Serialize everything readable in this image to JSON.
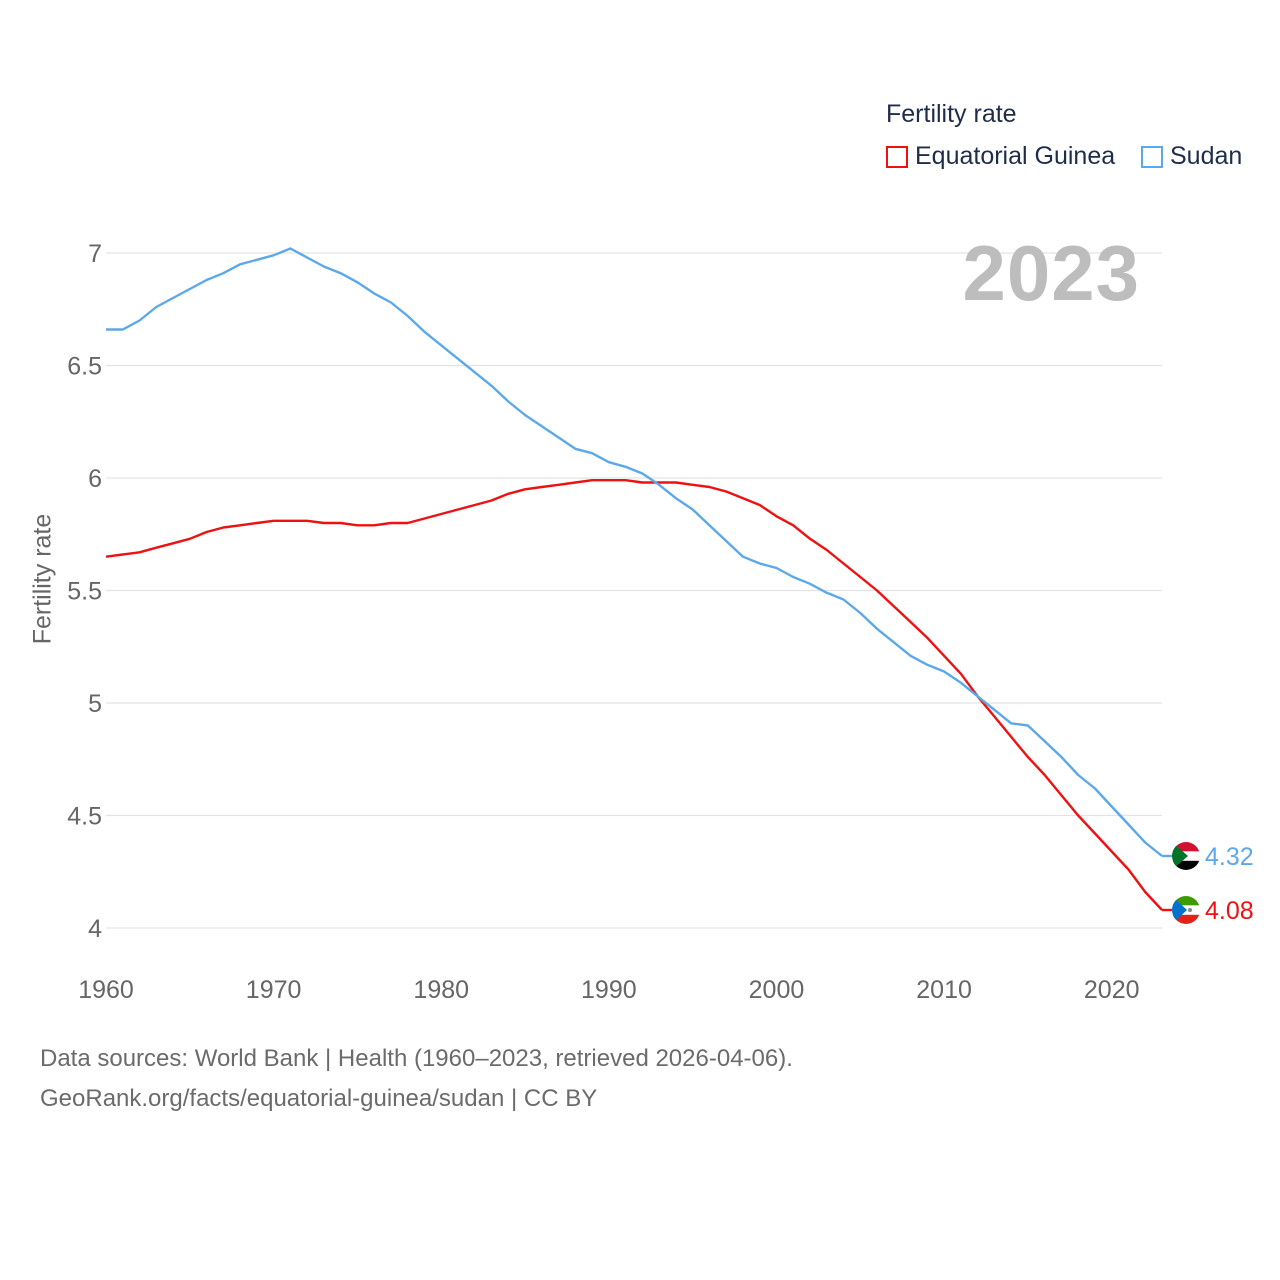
{
  "legend": {
    "title": "Fertility rate",
    "items": [
      {
        "label": "Equatorial Guinea",
        "color": "#ee1111"
      },
      {
        "label": "Sudan",
        "color": "#5ca8e8"
      }
    ]
  },
  "year_badge": "2023",
  "footer": {
    "line1": "Data sources: World Bank | Health (1960–2023, retrieved 2026-04-06).",
    "line2": "GeoRank.org/facts/equatorial-guinea/sudan | CC BY"
  },
  "chart_data": {
    "type": "line",
    "title": "Fertility rate",
    "xlabel": "",
    "ylabel": "Fertility rate",
    "xlim": [
      1960,
      2023
    ],
    "ylim": [
      4,
      7.2
    ],
    "x_ticks": [
      1960,
      1970,
      1980,
      1990,
      2000,
      2010,
      2020
    ],
    "y_ticks": [
      4,
      4.5,
      5,
      5.5,
      6,
      6.5,
      7
    ],
    "y_tick_labels": [
      "4",
      "4.5",
      "5",
      "5.5",
      "6",
      "6.5",
      "7"
    ],
    "grid": true,
    "x": [
      1960,
      1961,
      1962,
      1963,
      1964,
      1965,
      1966,
      1967,
      1968,
      1969,
      1970,
      1971,
      1972,
      1973,
      1974,
      1975,
      1976,
      1977,
      1978,
      1979,
      1980,
      1981,
      1982,
      1983,
      1984,
      1985,
      1986,
      1987,
      1988,
      1989,
      1990,
      1991,
      1992,
      1993,
      1994,
      1995,
      1996,
      1997,
      1998,
      1999,
      2000,
      2001,
      2002,
      2003,
      2004,
      2005,
      2006,
      2007,
      2008,
      2009,
      2010,
      2011,
      2012,
      2013,
      2014,
      2015,
      2016,
      2017,
      2018,
      2019,
      2020,
      2021,
      2022,
      2023
    ],
    "series": [
      {
        "name": "Equatorial Guinea",
        "color": "#ee1111",
        "end_label": "4.08",
        "values": [
          5.65,
          5.66,
          5.67,
          5.69,
          5.71,
          5.73,
          5.76,
          5.78,
          5.79,
          5.8,
          5.81,
          5.81,
          5.81,
          5.8,
          5.8,
          5.79,
          5.79,
          5.8,
          5.8,
          5.82,
          5.84,
          5.86,
          5.88,
          5.9,
          5.93,
          5.95,
          5.96,
          5.97,
          5.98,
          5.99,
          5.99,
          5.99,
          5.98,
          5.98,
          5.98,
          5.97,
          5.96,
          5.94,
          5.91,
          5.88,
          5.83,
          5.79,
          5.73,
          5.68,
          5.62,
          5.56,
          5.5,
          5.43,
          5.36,
          5.29,
          5.21,
          5.13,
          5.03,
          4.94,
          4.85,
          4.76,
          4.68,
          4.59,
          4.5,
          4.42,
          4.34,
          4.26,
          4.16,
          4.08
        ]
      },
      {
        "name": "Sudan",
        "color": "#5ca8e8",
        "end_label": "4.32",
        "values": [
          6.66,
          6.66,
          6.7,
          6.76,
          6.8,
          6.84,
          6.88,
          6.91,
          6.95,
          6.97,
          6.99,
          7.02,
          6.98,
          6.94,
          6.91,
          6.87,
          6.82,
          6.78,
          6.72,
          6.65,
          6.59,
          6.53,
          6.47,
          6.41,
          6.34,
          6.28,
          6.23,
          6.18,
          6.13,
          6.11,
          6.07,
          6.05,
          6.02,
          5.97,
          5.91,
          5.86,
          5.79,
          5.72,
          5.65,
          5.62,
          5.6,
          5.56,
          5.53,
          5.49,
          5.46,
          5.4,
          5.33,
          5.27,
          5.21,
          5.17,
          5.14,
          5.09,
          5.03,
          4.97,
          4.91,
          4.9,
          4.83,
          4.76,
          4.68,
          4.62,
          4.54,
          4.46,
          4.38,
          4.32
        ]
      }
    ]
  }
}
